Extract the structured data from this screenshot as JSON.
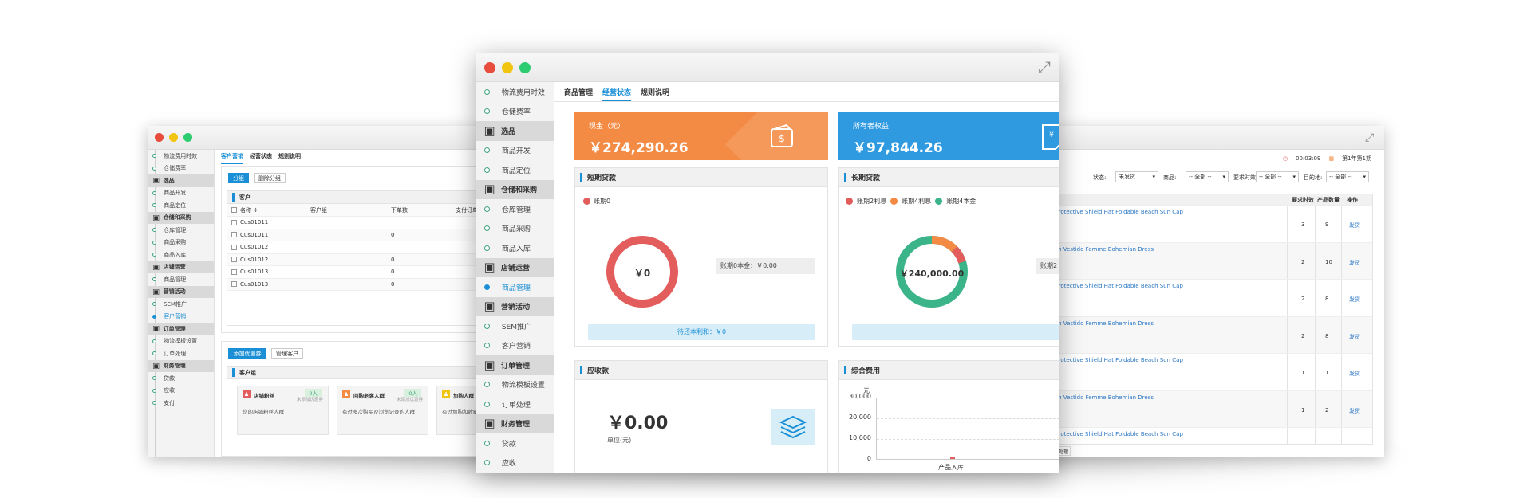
{
  "colors": {
    "accent": "#1a8fd6",
    "orange": "#f38b44",
    "blue": "#2f9ae0",
    "teal": "#3cb48a",
    "red": "#e35d5d",
    "close": "#e74c3c",
    "minimize": "#f1c40f",
    "zoom": "#2ecc71"
  },
  "left": {
    "sidebar": [
      {
        "label": "物流费用时效",
        "type": "item"
      },
      {
        "label": "仓储费率",
        "type": "item"
      },
      {
        "label": "选品",
        "type": "section",
        "icon": "box-icon"
      },
      {
        "label": "商品开发",
        "type": "item"
      },
      {
        "label": "商品定位",
        "type": "item"
      },
      {
        "label": "仓储和采购",
        "type": "section",
        "icon": "warehouse-icon"
      },
      {
        "label": "仓库管理",
        "type": "item"
      },
      {
        "label": "商品采购",
        "type": "item"
      },
      {
        "label": "商品入库",
        "type": "item"
      },
      {
        "label": "店铺运营",
        "type": "section",
        "icon": "store-icon"
      },
      {
        "label": "商品管理",
        "type": "item"
      },
      {
        "label": "营销活动",
        "type": "section",
        "icon": "gift-icon"
      },
      {
        "label": "SEM推广",
        "type": "item"
      },
      {
        "label": "客户营销",
        "type": "item",
        "active": true
      },
      {
        "label": "订单管理",
        "type": "section",
        "icon": "clipboard-icon"
      },
      {
        "label": "物流模板设置",
        "type": "item"
      },
      {
        "label": "订单处理",
        "type": "item"
      },
      {
        "label": "财务管理",
        "type": "section",
        "icon": "finance-icon"
      },
      {
        "label": "贷款",
        "type": "item"
      },
      {
        "label": "应收",
        "type": "item"
      },
      {
        "label": "支付",
        "type": "item"
      }
    ],
    "tabs": [
      "客户营销",
      "经营状态",
      "规则说明"
    ],
    "active_tab": 0,
    "btn_group": "分组",
    "btn_delete_group": "删除分组",
    "customers_title": "客户",
    "cols": [
      "名称 ⇕",
      "客户组",
      "下单数",
      "支付订单"
    ],
    "rows": [
      {
        "name": "Cus01011",
        "orders": ""
      },
      {
        "name": "Cus01011",
        "orders": "0"
      },
      {
        "name": "Cus01012",
        "orders": ""
      },
      {
        "name": "Cus01012",
        "orders": "0"
      },
      {
        "name": "Cus01013",
        "orders": "0"
      },
      {
        "name": "Cus01013",
        "orders": "0"
      }
    ],
    "btn_add_coupon": "添加优惠券",
    "btn_manage_customers": "管理客户",
    "group_title": "客户组",
    "groups": [
      {
        "name": "店铺粉丝",
        "count": "0人",
        "sub": "未添加优惠券",
        "desc": "您的店铺粉丝人群",
        "color": "#e35d5d"
      },
      {
        "name": "回购老客人群",
        "count": "0人",
        "sub": "未添加优惠券",
        "desc": "有过多次购买及浏览记录的人群",
        "color": "#f38b44"
      },
      {
        "name": "加购人群",
        "count": "",
        "sub": "",
        "desc": "有过加购和收藏的人群",
        "color": "#f1c40f"
      }
    ]
  },
  "center": {
    "sidebar": [
      {
        "label": "物流费用时效",
        "type": "item"
      },
      {
        "label": "仓储费率",
        "type": "item"
      },
      {
        "label": "选品",
        "type": "section",
        "icon": "box-icon"
      },
      {
        "label": "商品开发",
        "type": "item"
      },
      {
        "label": "商品定位",
        "type": "item"
      },
      {
        "label": "仓储和采购",
        "type": "section",
        "icon": "warehouse-icon"
      },
      {
        "label": "仓库管理",
        "type": "item"
      },
      {
        "label": "商品采购",
        "type": "item"
      },
      {
        "label": "商品入库",
        "type": "item"
      },
      {
        "label": "店铺运营",
        "type": "section",
        "icon": "store-icon"
      },
      {
        "label": "商品管理",
        "type": "item",
        "active": true
      },
      {
        "label": "营销活动",
        "type": "section",
        "icon": "gift-icon"
      },
      {
        "label": "SEM推广",
        "type": "item"
      },
      {
        "label": "客户营销",
        "type": "item"
      },
      {
        "label": "订单管理",
        "type": "section",
        "icon": "clipboard-icon"
      },
      {
        "label": "物流模板设置",
        "type": "item"
      },
      {
        "label": "订单处理",
        "type": "item"
      },
      {
        "label": "财务管理",
        "type": "section",
        "icon": "finance-icon"
      },
      {
        "label": "贷款",
        "type": "item"
      },
      {
        "label": "应收",
        "type": "item"
      },
      {
        "label": "支付",
        "type": "item"
      }
    ],
    "tabs": [
      "商品管理",
      "经营状态",
      "规则说明"
    ],
    "active_tab": 1,
    "cash": {
      "label": "现金（元）",
      "value": "￥274,290.26"
    },
    "equity": {
      "label": "所有者权益",
      "value": "￥97,844.26"
    },
    "short_loan": {
      "title": "短期贷款",
      "legend": "账期0",
      "center": "￥0",
      "principal": "账期0本金：￥0.00",
      "footer": "待还本利和：￥0"
    },
    "long_loan": {
      "title": "长期贷款",
      "legend": [
        "账期2利息",
        "账期4利息",
        "账期4本金"
      ],
      "center": "￥240,000.00",
      "principal": "账期2"
    },
    "receivable": {
      "title": "应收款",
      "value": "￥0.00",
      "unit": "单位(元)"
    },
    "expense": {
      "title": "综合费用",
      "unit": "元",
      "yticks": [
        "30,000",
        "20,000",
        "10,000",
        "0"
      ],
      "xlabel": "产品入库"
    }
  },
  "right": {
    "time": "00:03:09",
    "period": "第1年第1期",
    "filters": [
      {
        "label": "状态:",
        "value": "未发货"
      },
      {
        "label": "商品:",
        "value": "-- 全部 --"
      },
      {
        "label": "要求时效:",
        "value": "-- 全部 --"
      },
      {
        "label": "目的地:",
        "value": "-- 全部 --"
      }
    ],
    "cols": [
      "商品",
      "要求时效",
      "产品数量",
      "操作"
    ],
    "rows": [
      {
        "product": "e Lady Protective Shield Hat Foldable Beach Sun Cap",
        "days": "3",
        "qty": "9",
        "action": "发货"
      },
      {
        "product": "se Cotton Vestido Femme Bohemian Dress",
        "days": "2",
        "qty": "10",
        "action": "发货"
      },
      {
        "product": "e Lady Protective Shield Hat Foldable Beach Sun Cap",
        "days": "2",
        "qty": "8",
        "action": "发货"
      },
      {
        "product": "se Cotton Vestido Femme Bohemian Dress",
        "days": "2",
        "qty": "8",
        "action": "发货"
      },
      {
        "product": "e Lady Protective Shield Hat Foldable Beach Sun Cap",
        "days": "1",
        "qty": "1",
        "action": "发货"
      },
      {
        "product": "se Cotton Vestido Femme Bohemian Dress",
        "days": "1",
        "qty": "2",
        "action": "发货"
      },
      {
        "product": "e Lady Protective Shield Hat Foldable Beach Sun Cap",
        "days": "",
        "qty": "",
        "action": ""
      }
    ],
    "footer_btn": "结束订单处理"
  }
}
